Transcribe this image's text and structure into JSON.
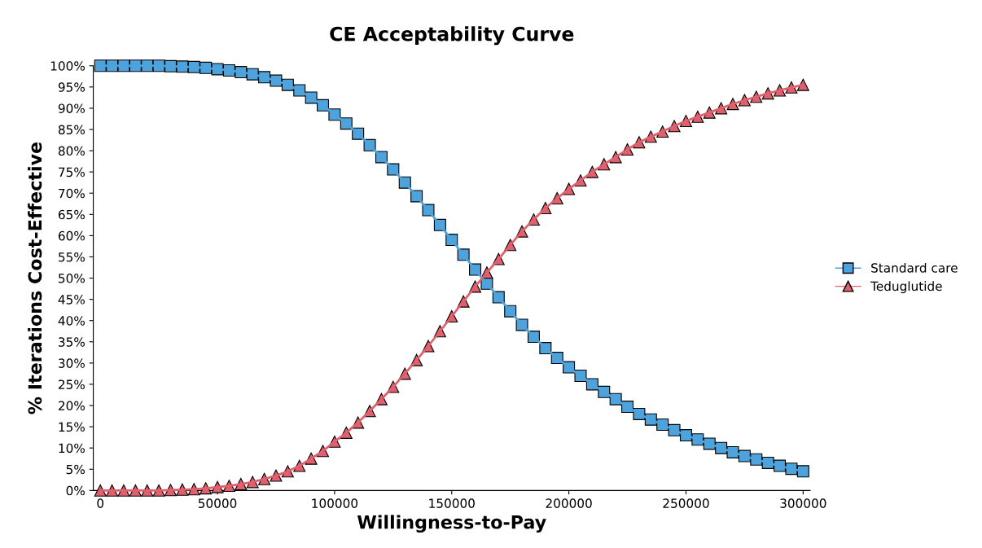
{
  "chart_data": {
    "type": "line",
    "title": "CE Acceptability Curve",
    "xlabel": "Willingness-to-Pay",
    "ylabel": "% Iterations Cost-Effective",
    "x": [
      0,
      5000,
      10000,
      15000,
      20000,
      25000,
      30000,
      35000,
      40000,
      45000,
      50000,
      55000,
      60000,
      65000,
      70000,
      75000,
      80000,
      85000,
      90000,
      95000,
      100000,
      105000,
      110000,
      115000,
      120000,
      125000,
      130000,
      135000,
      140000,
      145000,
      150000,
      155000,
      160000,
      165000,
      170000,
      175000,
      180000,
      185000,
      190000,
      195000,
      200000,
      205000,
      210000,
      215000,
      220000,
      225000,
      230000,
      235000,
      240000,
      245000,
      250000,
      255000,
      260000,
      265000,
      270000,
      275000,
      280000,
      285000,
      290000,
      295000,
      300000
    ],
    "series": [
      {
        "name": "Standard care",
        "color": "#4ea3dc",
        "marker": "square",
        "values": [
          100,
          100,
          100,
          100,
          100,
          100,
          99.9,
          99.8,
          99.7,
          99.5,
          99.2,
          98.9,
          98.5,
          98,
          97.3,
          96.5,
          95.5,
          94.2,
          92.5,
          90.7,
          88.5,
          86.4,
          84,
          81.3,
          78.5,
          75.6,
          72.5,
          69.3,
          66,
          62.5,
          59,
          55.5,
          52,
          48.7,
          45.5,
          42.2,
          39,
          36.2,
          33.5,
          31.2,
          29,
          27,
          25,
          23.2,
          21.5,
          19.7,
          18,
          16.7,
          15.5,
          14.2,
          13,
          12,
          11,
          10,
          9,
          8.1,
          7.3,
          6.5,
          5.8,
          5.1,
          4.5
        ]
      },
      {
        "name": "Teduglutide",
        "color": "#e0606e",
        "marker": "triangle",
        "values": [
          0,
          0,
          0,
          0,
          0,
          0,
          0.1,
          0.2,
          0.3,
          0.5,
          0.8,
          1.1,
          1.5,
          2,
          2.7,
          3.5,
          4.5,
          5.8,
          7.5,
          9.3,
          11.5,
          13.6,
          16,
          18.7,
          21.5,
          24.4,
          27.5,
          30.7,
          34,
          37.5,
          41,
          44.5,
          48,
          51.3,
          54.5,
          57.8,
          61,
          63.8,
          66.5,
          68.8,
          71,
          73,
          75,
          76.8,
          78.5,
          80.3,
          82,
          83.3,
          84.5,
          85.8,
          87,
          88,
          89,
          90,
          91,
          91.9,
          92.7,
          93.5,
          94.2,
          94.9,
          95.5
        ]
      }
    ],
    "xlim": [
      -3000,
      303000
    ],
    "xticks": [
      0,
      50000,
      100000,
      150000,
      200000,
      250000,
      300000
    ],
    "ylim": [
      0,
      100
    ],
    "yticks": [
      {
        "value": 0,
        "label": "0%"
      },
      {
        "value": 5,
        "label": "5%"
      },
      {
        "value": 10,
        "label": "10%"
      },
      {
        "value": 15,
        "label": "15%"
      },
      {
        "value": 20,
        "label": "20%"
      },
      {
        "value": 25,
        "label": "25%"
      },
      {
        "value": 30,
        "label": "30%"
      },
      {
        "value": 35,
        "label": "35%"
      },
      {
        "value": 40,
        "label": "40%"
      },
      {
        "value": 45,
        "label": "45%"
      },
      {
        "value": 50,
        "label": "50%"
      },
      {
        "value": 55,
        "label": "55%"
      },
      {
        "value": 60,
        "label": "60%"
      },
      {
        "value": 65,
        "label": "65%"
      },
      {
        "value": 70,
        "label": "70%"
      },
      {
        "value": 75,
        "label": "75%"
      },
      {
        "value": 80,
        "label": "80%"
      },
      {
        "value": 85,
        "label": "85%"
      },
      {
        "value": 90,
        "label": "90%"
      },
      {
        "value": 95,
        "label": "95%"
      },
      {
        "value": 100,
        "label": "100%"
      }
    ],
    "legend": "right",
    "grid": false
  }
}
